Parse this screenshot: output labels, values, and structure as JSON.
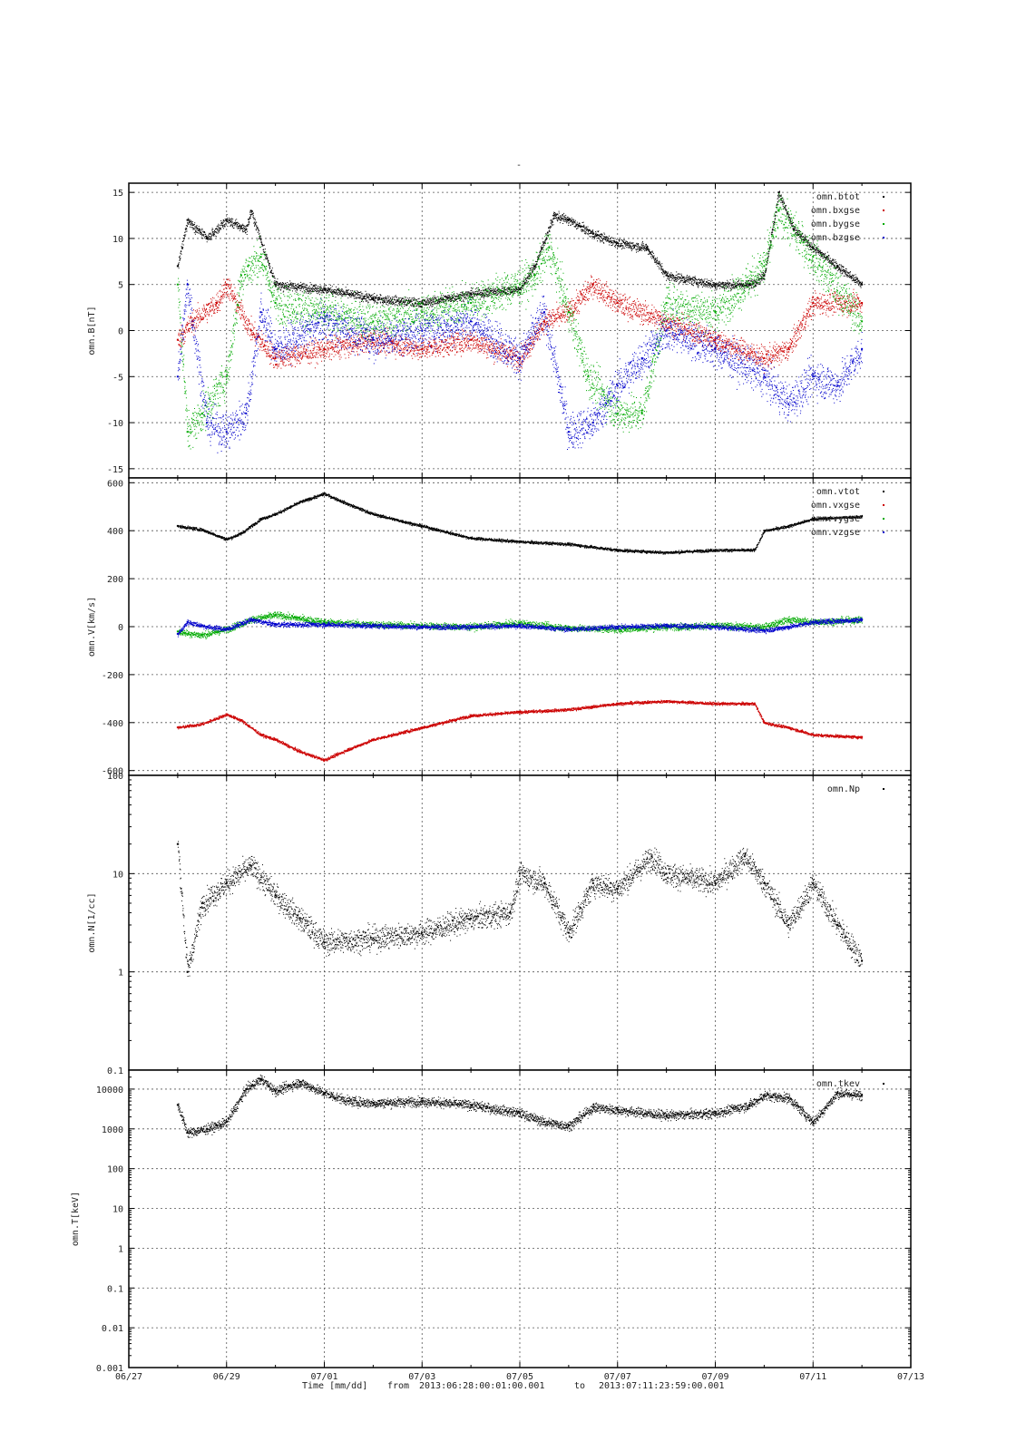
{
  "figure": {
    "title": "-",
    "x_tick_labels": [
      "06/27",
      "06/29",
      "07/01",
      "07/03",
      "07/05",
      "07/07",
      "07/09",
      "07/11",
      "07/13"
    ],
    "footer": {
      "xlabel": "Time [mm/dd]",
      "from_label": "from",
      "from_value": "2013:06:28:00:01:00.001",
      "to_label": "to",
      "to_value": "2013:07:11:23:59:00.001"
    }
  },
  "chart_data": [
    {
      "type": "scatter",
      "ylabel": "omn.B[nT]",
      "ylim": [
        -16,
        16
      ],
      "log": false,
      "xlim": [
        "2013-06-27",
        "2013-07-13"
      ],
      "grid": true,
      "legend_position": "top-right",
      "y_ticks": [
        {
          "value": 15,
          "label": "15"
        },
        {
          "value": 10,
          "label": "10"
        },
        {
          "value": 5,
          "label": "5"
        },
        {
          "value": 0,
          "label": "0"
        },
        {
          "value": -5,
          "label": "-5"
        },
        {
          "value": -10,
          "label": "-10"
        },
        {
          "value": -15,
          "label": "-15"
        }
      ],
      "series": [
        {
          "name": "omn.btot",
          "color": "#000000",
          "noise": 0.5,
          "x": [
            "2013-06-28",
            "2013-06-28.2",
            "2013-06-28.6",
            "2013-06-29",
            "2013-06-29.4",
            "2013-06-29.5",
            "2013-06-30",
            "2013-07-01",
            "2013-07-02",
            "2013-07-03",
            "2013-07-04",
            "2013-07-05",
            "2013-07-05.3",
            "2013-07-05.7",
            "2013-07-06",
            "2013-07-06.5",
            "2013-07-07",
            "2013-07-07.6",
            "2013-07-08",
            "2013-07-09",
            "2013-07-09.7",
            "2013-07-10",
            "2013-07-10.3",
            "2013-07-10.6",
            "2013-07-11",
            "2013-07-11.5",
            "2013-07-12"
          ],
          "y": [
            7,
            12,
            10,
            12,
            11,
            13,
            5,
            4.5,
            3.5,
            3,
            4,
            4.5,
            7,
            12.5,
            12,
            10.5,
            9.5,
            9,
            6,
            5,
            5,
            6,
            15,
            11,
            9,
            7,
            5
          ]
        },
        {
          "name": "omn.bxgse",
          "color": "#cc0000",
          "noise": 1.2,
          "x": [
            "2013-06-28",
            "2013-06-28.3",
            "2013-06-28.8",
            "2013-06-29",
            "2013-06-29.5",
            "2013-06-30",
            "2013-07-01",
            "2013-07-02",
            "2013-07-03",
            "2013-07-04",
            "2013-07-05",
            "2013-07-05.5",
            "2013-07-06",
            "2013-07-06.5",
            "2013-07-07",
            "2013-07-08",
            "2013-07-09",
            "2013-07-10",
            "2013-07-10.5",
            "2013-07-11",
            "2013-07-12"
          ],
          "y": [
            -1,
            1,
            3,
            5,
            0,
            -3,
            -2,
            -1,
            -2,
            -1,
            -3,
            1,
            2,
            5,
            3,
            1,
            -1,
            -3,
            -2,
            3,
            3
          ]
        },
        {
          "name": "omn.bygse",
          "color": "#00aa00",
          "noise": 2.0,
          "x": [
            "2013-06-28",
            "2013-06-28.2",
            "2013-06-28.5",
            "2013-06-29",
            "2013-06-29.3",
            "2013-06-29.7",
            "2013-06-30",
            "2013-07-01",
            "2013-07-02",
            "2013-07-03",
            "2013-07-04",
            "2013-07-05",
            "2013-07-05.3",
            "2013-07-05.6",
            "2013-07-06",
            "2013-07-06.4",
            "2013-07-07",
            "2013-07-07.5",
            "2013-07-08",
            "2013-07-09",
            "2013-07-10",
            "2013-07-10.3",
            "2013-07-11",
            "2013-07-12"
          ],
          "y": [
            5,
            -11,
            -9,
            -5,
            6,
            8,
            3,
            2,
            1,
            2,
            3,
            5,
            6,
            9,
            2,
            -5,
            -9,
            -9,
            3,
            2,
            7,
            13,
            8,
            1
          ]
        },
        {
          "name": "omn.bzgse",
          "color": "#0000cc",
          "noise": 2.0,
          "x": [
            "2013-06-28",
            "2013-06-28.2",
            "2013-06-28.6",
            "2013-06-29",
            "2013-06-29.4",
            "2013-06-29.7",
            "2013-06-30",
            "2013-07-01",
            "2013-07-02",
            "2013-07-03",
            "2013-07-04",
            "2013-07-05",
            "2013-07-05.5",
            "2013-07-06",
            "2013-07-06.5",
            "2013-07-07",
            "2013-07-07.5",
            "2013-07-08",
            "2013-07-09",
            "2013-07-10",
            "2013-07-10.5",
            "2013-07-11",
            "2013-07-11.5",
            "2013-07-12"
          ],
          "y": [
            -5,
            5,
            -10,
            -11,
            -9,
            2,
            -2,
            1,
            -1,
            0,
            1,
            -3,
            2,
            -11,
            -10,
            -6,
            -3,
            0,
            -2,
            -5,
            -8,
            -5,
            -6,
            -2
          ]
        }
      ]
    },
    {
      "type": "scatter",
      "ylabel": "omn.V[km/s]",
      "ylim": [
        -620,
        620
      ],
      "log": false,
      "xlim": [
        "2013-06-27",
        "2013-07-13"
      ],
      "grid": true,
      "legend_position": "top-right",
      "y_ticks": [
        {
          "value": 600,
          "label": "600"
        },
        {
          "value": 400,
          "label": "400"
        },
        {
          "value": 200,
          "label": "200"
        },
        {
          "value": 0,
          "label": "0"
        },
        {
          "value": -200,
          "label": "-200"
        },
        {
          "value": -400,
          "label": "-400"
        },
        {
          "value": -600,
          "label": "-600"
        }
      ],
      "series": [
        {
          "name": "omn.vtot",
          "color": "#000000",
          "noise": 6,
          "x": [
            "2013-06-28",
            "2013-06-28.5",
            "2013-06-29",
            "2013-06-29.3",
            "2013-06-29.7",
            "2013-06-30",
            "2013-06-30.5",
            "2013-07-01",
            "2013-07-01.5",
            "2013-07-02",
            "2013-07-03",
            "2013-07-04",
            "2013-07-05",
            "2013-07-06",
            "2013-07-07",
            "2013-07-08",
            "2013-07-09",
            "2013-07-09.8",
            "2013-07-10",
            "2013-07-10.5",
            "2013-07-11",
            "2013-07-12"
          ],
          "y": [
            420,
            405,
            365,
            390,
            450,
            470,
            520,
            555,
            510,
            470,
            420,
            370,
            355,
            345,
            320,
            310,
            320,
            320,
            400,
            420,
            450,
            460
          ]
        },
        {
          "name": "omn.vxgse",
          "color": "#cc0000",
          "noise": 6,
          "x": [
            "2013-06-28",
            "2013-06-28.5",
            "2013-06-29",
            "2013-06-29.3",
            "2013-06-29.7",
            "2013-06-30",
            "2013-06-30.5",
            "2013-07-01",
            "2013-07-01.5",
            "2013-07-02",
            "2013-07-03",
            "2013-07-04",
            "2013-07-05",
            "2013-07-06",
            "2013-07-07",
            "2013-07-08",
            "2013-07-09",
            "2013-07-09.8",
            "2013-07-10",
            "2013-07-10.5",
            "2013-07-11",
            "2013-07-12"
          ],
          "y": [
            -420,
            -405,
            -365,
            -390,
            -450,
            -470,
            -520,
            -555,
            -510,
            -470,
            -420,
            -370,
            -355,
            -345,
            -320,
            -310,
            -320,
            -320,
            -400,
            -420,
            -450,
            -460
          ]
        },
        {
          "name": "omn.vygse",
          "color": "#00aa00",
          "noise": 14,
          "x": [
            "2013-06-28",
            "2013-06-28.5",
            "2013-06-29",
            "2013-06-29.5",
            "2013-06-30",
            "2013-07-01",
            "2013-07-02",
            "2013-07-03",
            "2013-07-04",
            "2013-07-05",
            "2013-07-06",
            "2013-07-07",
            "2013-07-08",
            "2013-07-09",
            "2013-07-10",
            "2013-07-10.5",
            "2013-07-11",
            "2013-07-12"
          ],
          "y": [
            -20,
            -35,
            -10,
            30,
            50,
            20,
            10,
            5,
            0,
            15,
            -5,
            -10,
            0,
            5,
            0,
            30,
            20,
            30
          ]
        },
        {
          "name": "omn.vzgse",
          "color": "#0000cc",
          "noise": 10,
          "x": [
            "2013-06-28",
            "2013-06-28.2",
            "2013-06-28.6",
            "2013-06-29",
            "2013-06-29.5",
            "2013-06-30",
            "2013-07-01",
            "2013-07-02",
            "2013-07-03",
            "2013-07-04",
            "2013-07-05",
            "2013-07-06",
            "2013-07-07",
            "2013-07-08",
            "2013-07-09",
            "2013-07-10",
            "2013-07-10.5",
            "2013-07-11",
            "2013-07-12"
          ],
          "y": [
            -30,
            20,
            0,
            -10,
            30,
            10,
            10,
            5,
            0,
            0,
            5,
            -10,
            0,
            5,
            0,
            -15,
            0,
            20,
            30
          ]
        }
      ]
    },
    {
      "type": "scatter",
      "ylabel": "omn.N[1/cc]",
      "ylim": [
        0.1,
        100
      ],
      "log": true,
      "xlim": [
        "2013-06-27",
        "2013-07-13"
      ],
      "grid": true,
      "legend_position": "top-right",
      "y_ticks": [
        {
          "value": 100,
          "label": "100"
        },
        {
          "value": 10,
          "label": "10"
        },
        {
          "value": 1,
          "label": "1"
        },
        {
          "value": 0.1,
          "label": "0.1"
        }
      ],
      "series": [
        {
          "name": "omn.Np",
          "color": "#000000",
          "noise": 0.12,
          "x": [
            "2013-06-28",
            "2013-06-28.2",
            "2013-06-28.5",
            "2013-06-29",
            "2013-06-29.5",
            "2013-06-30",
            "2013-06-30.5",
            "2013-07-01",
            "2013-07-02",
            "2013-07-03",
            "2013-07-04",
            "2013-07-04.8",
            "2013-07-05",
            "2013-07-05.5",
            "2013-07-06",
            "2013-07-06.5",
            "2013-07-07",
            "2013-07-07.7",
            "2013-07-08",
            "2013-07-09",
            "2013-07-09.6",
            "2013-07-10",
            "2013-07-10.5",
            "2013-07-11",
            "2013-07-11.5",
            "2013-07-12"
          ],
          "y": [
            20,
            1,
            5,
            8,
            12,
            6,
            3.5,
            2,
            2.2,
            2.5,
            3.5,
            4,
            10,
            8,
            2.5,
            8,
            7,
            15,
            10,
            8,
            15,
            8,
            3,
            8,
            3,
            1.3
          ]
        }
      ]
    },
    {
      "type": "scatter",
      "ylabel": "omn.T[keV]",
      "ylim": [
        0.001,
        30000
      ],
      "log": true,
      "xlim": [
        "2013-06-27",
        "2013-07-13"
      ],
      "grid": true,
      "legend_position": "top-right",
      "y_ticks": [
        {
          "value": 10000,
          "label": "10000"
        },
        {
          "value": 1000,
          "label": "1000"
        },
        {
          "value": 100,
          "label": "100"
        },
        {
          "value": 10,
          "label": "10"
        },
        {
          "value": 1,
          "label": "1"
        },
        {
          "value": 0.1,
          "label": "0.1"
        },
        {
          "value": 0.01,
          "label": "0.01"
        },
        {
          "value": 0.001,
          "label": "0.001"
        }
      ],
      "series": [
        {
          "name": "omn.tkev",
          "color": "#000000",
          "noise": 0.12,
          "x": [
            "2013-06-28",
            "2013-06-28.2",
            "2013-06-28.6",
            "2013-06-29",
            "2013-06-29.4",
            "2013-06-29.7",
            "2013-06-30",
            "2013-06-30.5",
            "2013-07-01",
            "2013-07-01.5",
            "2013-07-02",
            "2013-07-03",
            "2013-07-04",
            "2013-07-05",
            "2013-07-05.5",
            "2013-07-06",
            "2013-07-06.5",
            "2013-07-07",
            "2013-07-08",
            "2013-07-09",
            "2013-07-09.7",
            "2013-07-10",
            "2013-07-10.5",
            "2013-07-11",
            "2013-07-11.5",
            "2013-07-12"
          ],
          "y": [
            4000,
            800,
            1000,
            1500,
            10000,
            18000,
            9000,
            15000,
            8000,
            5000,
            4500,
            5000,
            4000,
            2500,
            1500,
            1200,
            3500,
            3000,
            2200,
            2500,
            4000,
            7000,
            6000,
            1500,
            8000,
            7000
          ]
        }
      ]
    }
  ]
}
